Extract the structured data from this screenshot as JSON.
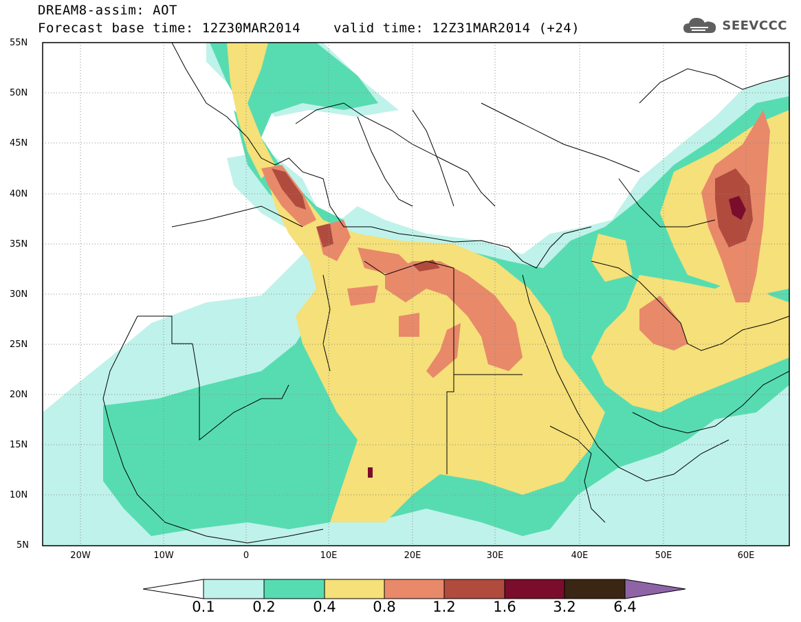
{
  "header": {
    "title_line1": "DREAM8-assim: AOT",
    "title_line2": "Forecast base time: 12Z30MAR2014",
    "valid_time": "valid time: 12Z31MAR2014 (+24)",
    "logo_text": "SEEVCCC"
  },
  "map": {
    "variable": "AOT",
    "lat_labels": [
      "55N",
      "50N",
      "45N",
      "40N",
      "35N",
      "30N",
      "25N",
      "20N",
      "15N",
      "10N",
      "5N"
    ],
    "lon_labels": [
      "20W",
      "10W",
      "0",
      "10E",
      "20E",
      "30E",
      "40E",
      "50E",
      "60E"
    ],
    "lon_range_deg": [
      -25,
      65
    ],
    "lat_range_deg": [
      5,
      55
    ]
  },
  "colorbar": {
    "labels": [
      "0.1",
      "0.2",
      "0.4",
      "0.8",
      "1.2",
      "1.6",
      "3.2",
      "6.4"
    ],
    "colors": [
      "#bff2ea",
      "#57dcb1",
      "#f5e079",
      "#e8896a",
      "#b04b3e",
      "#7a0d2c",
      "#3a2612",
      "#8f64a7"
    ]
  }
}
